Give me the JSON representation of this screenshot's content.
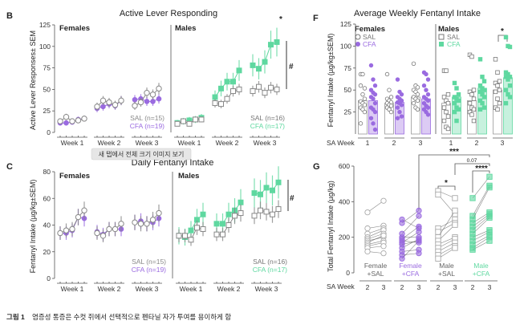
{
  "tooltip": "새 탭에서 전체 크기 이미지 보기",
  "caption": {
    "label": "그림 1",
    "text": "염증성 통증은 수컷 쥐에서 선택적으로 펜타닐 자가 투여를 용이하게 함"
  },
  "colors": {
    "sal": "#8a8a8a",
    "cfa_female": "#9a6be0",
    "cfa_male": "#5fd8a0"
  },
  "panels": {
    "B": {
      "letter": "B",
      "title": "Active Lever Responding",
      "ylabel": "Active Lever Responses± SEM",
      "females": "Females",
      "males": "Males",
      "legend_f": [
        "SAL (n=15)",
        "CFA (n=19)"
      ],
      "legend_m": [
        "SAL (n=16)",
        "CFA (n=17)"
      ],
      "sig_star": "*",
      "sig_hash": "#"
    },
    "C": {
      "letter": "C",
      "title": "Daily Fentanyl Intake",
      "ylabel": "Fentanyl Intake (µg/kg±SEM)",
      "females": "Females",
      "males": "Males",
      "legend_f": [
        "SAL (n=15)",
        "CFA (n=19)"
      ],
      "legend_m": [
        "SAL (n=16)",
        "CFA (n=17)"
      ],
      "sig_hash": "#"
    },
    "F": {
      "letter": "F",
      "title": "Average Weekly Fentanyl Intake",
      "ylabel": "Fentanyl Intake (µg/kg±SEM)",
      "females": "Females",
      "males": "Males",
      "legend": [
        "SAL",
        "CFA"
      ],
      "xrow": "SA Week",
      "sig_star": "*"
    },
    "G": {
      "letter": "G",
      "ylabel": "Total Fentanyl Intake (µg/kg)",
      "xrow": "SA Week",
      "groups": [
        [
          "Female",
          "+SAL"
        ],
        [
          "Female",
          "+CFA"
        ],
        [
          "Male",
          "+SAL"
        ],
        [
          "Male",
          "+CFA"
        ]
      ],
      "sig": [
        "***",
        "0.07",
        "*",
        "****"
      ]
    }
  },
  "chart_data": [
    {
      "id": "B",
      "type": "line",
      "title": "Active Lever Responding",
      "ylabel": "Active Lever Responses± SEM",
      "ylim": [
        0,
        125
      ],
      "yticks": [
        0,
        25,
        50,
        75,
        100,
        125
      ],
      "weeks": [
        "Week 1",
        "Week 2",
        "Week 3"
      ],
      "females": {
        "SAL": [
          13,
          18,
          13,
          14,
          16,
          30,
          37,
          35,
          32,
          37,
          31,
          35,
          46,
          44,
          51
        ],
        "CFA": [
          11,
          11,
          12,
          15,
          16,
          28,
          30,
          33,
          31,
          37,
          38,
          39,
          36,
          36,
          39
        ]
      },
      "males": {
        "SAL": [
          10,
          13,
          10,
          15,
          15,
          34,
          33,
          39,
          48,
          50,
          48,
          53,
          46,
          52,
          50
        ],
        "CFA": [
          11,
          13,
          14,
          15,
          17,
          41,
          51,
          59,
          59,
          72,
          78,
          74,
          82,
          102,
          105
        ]
      }
    },
    {
      "id": "C",
      "type": "line",
      "title": "Daily Fentanyl Intake",
      "ylabel": "Fentanyl Intake (µg/kg±SEM)",
      "ylim": [
        0,
        80
      ],
      "yticks": [
        0,
        20,
        40,
        60,
        80
      ],
      "weeks": [
        "Week 1",
        "Week 2",
        "Week 3"
      ],
      "females": {
        "SAL": [
          34,
          36,
          37,
          46,
          51,
          34,
          32,
          37,
          37,
          41,
          42,
          41,
          41,
          44,
          49
        ],
        "CFA": [
          34,
          34,
          36,
          46,
          45,
          35,
          33,
          37,
          37,
          37,
          42,
          43,
          41,
          42,
          45
        ]
      },
      "males": {
        "SAL": [
          32,
          32,
          29,
          38,
          37,
          33,
          33,
          40,
          47,
          49,
          47,
          51,
          50,
          48,
          52
        ],
        "CFA": [
          32,
          31,
          36,
          44,
          48,
          41,
          41,
          48,
          51,
          57,
          64,
          63,
          68,
          66,
          72
        ]
      }
    },
    {
      "id": "F",
      "type": "bar",
      "title": "Average Weekly Fentanyl Intake",
      "ylabel": "Fentanyl Intake (µg/kg±SEM)",
      "ylim": [
        0,
        125
      ],
      "yticks": [
        25,
        50,
        75,
        100,
        125
      ],
      "categories": [
        "1",
        "2",
        "3"
      ],
      "females": {
        "SAL_mean": [
          38,
          35,
          42
        ],
        "CFA_mean": [
          38,
          36,
          40
        ],
        "SAL_points": [
          [
            68,
            68,
            52,
            55,
            45,
            40,
            37,
            35,
            33,
            30,
            28,
            25,
            12
          ],
          [
            68,
            50,
            42,
            40,
            38,
            36,
            35,
            33,
            32,
            30,
            28,
            25
          ],
          [
            80,
            55,
            53,
            50,
            48,
            45,
            42,
            40,
            38,
            35,
            30,
            28
          ]
        ],
        "CFA_points": [
          [
            78,
            62,
            55,
            50,
            47,
            45,
            42,
            40,
            35,
            30,
            28,
            25,
            18,
            12,
            5
          ],
          [
            62,
            48,
            45,
            42,
            40,
            38,
            36,
            35,
            33,
            30,
            25,
            20,
            18
          ],
          [
            70,
            68,
            62,
            55,
            50,
            45,
            42,
            40,
            38,
            35,
            32,
            30,
            28,
            25,
            22
          ]
        ]
      },
      "males": {
        "SAL_mean": [
          35,
          38,
          50
        ],
        "CFA_mean": [
          42,
          52,
          64
        ],
        "SAL_points": [
          [
            72,
            72,
            45,
            42,
            38,
            35,
            30,
            25,
            20,
            15,
            8,
            6
          ],
          [
            90,
            88,
            50,
            48,
            45,
            40,
            35,
            30,
            28,
            25,
            22,
            15
          ],
          [
            85,
            70,
            60,
            58,
            55,
            50,
            48,
            40,
            35,
            30,
            28
          ]
        ],
        "CFA_points": [
          [
            58,
            52,
            45,
            42,
            40,
            38,
            35,
            30,
            28,
            25,
            15
          ],
          [
            85,
            65,
            60,
            55,
            52,
            50,
            48,
            45,
            42,
            38,
            35,
            30,
            28
          ],
          [
            110,
            100,
            99,
            70,
            68,
            65,
            65,
            62,
            55,
            50,
            45,
            42,
            35
          ]
        ]
      }
    },
    {
      "id": "G",
      "type": "scatter",
      "ylabel": "Total Fentanyl Intake (µg/kg)",
      "ylim": [
        0,
        600
      ],
      "yticks": [
        0,
        200,
        400,
        600
      ],
      "x": [
        "2",
        "3"
      ],
      "series": [
        {
          "name": "Female +SAL",
          "pairs": [
            [
              340,
              405
            ],
            [
              250,
              265
            ],
            [
              220,
              250
            ],
            [
              200,
              240
            ],
            [
              190,
              220
            ],
            [
              180,
              200
            ],
            [
              170,
              210
            ],
            [
              160,
              180
            ],
            [
              150,
              170
            ],
            [
              140,
              150
            ],
            [
              120,
              110
            ]
          ]
        },
        {
          "name": "Female +CFA",
          "pairs": [
            [
              300,
              250
            ],
            [
              280,
              350
            ],
            [
              220,
              320
            ],
            [
              200,
              200
            ],
            [
              190,
              260
            ],
            [
              180,
              170
            ],
            [
              170,
              230
            ],
            [
              160,
              180
            ],
            [
              140,
              190
            ],
            [
              120,
              130
            ],
            [
              100,
              110
            ],
            [
              80,
              180
            ]
          ]
        },
        {
          "name": "Male +SAL",
          "pairs": [
            [
              460,
              420
            ],
            [
              440,
              330
            ],
            [
              250,
              300
            ],
            [
              230,
              280
            ],
            [
              200,
              350
            ],
            [
              180,
              270
            ],
            [
              160,
              200
            ],
            [
              140,
              190
            ],
            [
              120,
              170
            ],
            [
              100,
              150
            ],
            [
              80,
              140
            ]
          ]
        },
        {
          "name": "Male +CFA",
          "pairs": [
            [
              420,
              540
            ],
            [
              320,
              490
            ],
            [
              300,
              480
            ],
            [
              280,
              340
            ],
            [
              260,
              330
            ],
            [
              240,
              320
            ],
            [
              220,
              310
            ],
            [
              200,
              240
            ],
            [
              180,
              230
            ],
            [
              160,
              210
            ],
            [
              140,
              200
            ],
            [
              130,
              180
            ]
          ]
        }
      ]
    }
  ]
}
